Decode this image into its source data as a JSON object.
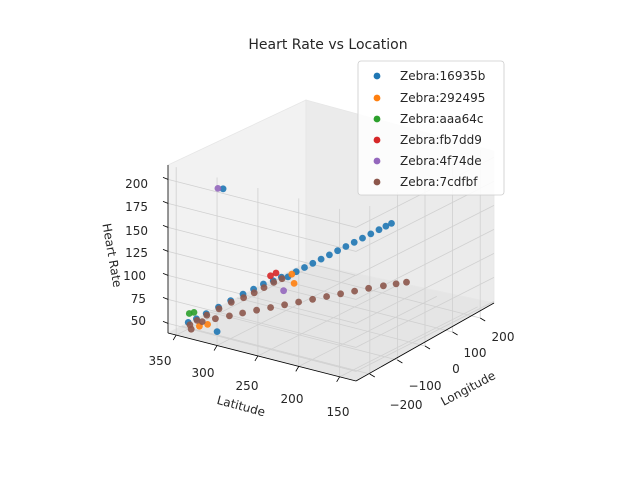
{
  "chart_data": {
    "type": "scatter",
    "projection": "3d",
    "title": "Heart Rate vs Location",
    "xlabel": "Longitude",
    "ylabel": "Latitude",
    "zlabel": "Heart Rate",
    "x_ticks": [
      "−200",
      "−100",
      "0",
      "100",
      "200"
    ],
    "y_ticks": [
      "150",
      "200",
      "250",
      "300",
      "350"
    ],
    "z_ticks": [
      "50",
      "75",
      "100",
      "125",
      "150",
      "175",
      "200"
    ],
    "xlim": [
      -250,
      250
    ],
    "ylim": [
      130,
      360
    ],
    "zlim": [
      40,
      215
    ],
    "grid": true,
    "legend": "top-right",
    "series": [
      {
        "name": "Zebra:16935b",
        "color": "#1f77b4",
        "points": [
          [
            -230,
            342,
            52
          ],
          [
            -230,
            332,
            58
          ],
          [
            -230,
            320,
            66
          ],
          [
            -230,
            305,
            76
          ],
          [
            -230,
            290,
            86
          ],
          [
            -230,
            275,
            96
          ],
          [
            -230,
            262,
            104
          ],
          [
            -230,
            250,
            112
          ],
          [
            -230,
            238,
            118
          ],
          [
            -230,
            228,
            124
          ],
          [
            -230,
            220,
            126
          ],
          [
            -200,
            220,
            127
          ],
          [
            -170,
            220,
            127
          ],
          [
            -140,
            220,
            127
          ],
          [
            -110,
            220,
            127
          ],
          [
            -80,
            220,
            127
          ],
          [
            -50,
            220,
            127
          ],
          [
            -20,
            220,
            127
          ],
          [
            10,
            220,
            127
          ],
          [
            40,
            220,
            127
          ],
          [
            70,
            220,
            127
          ],
          [
            100,
            220,
            127
          ],
          [
            125,
            220,
            127
          ],
          [
            145,
            220,
            127
          ],
          [
            -228,
            300,
            200
          ],
          [
            -220,
            310,
            48
          ]
        ]
      },
      {
        "name": "Zebra:292495",
        "color": "#ff7f0e",
        "points": [
          [
            -222,
            218,
            128
          ],
          [
            -190,
            226,
            112
          ],
          [
            -225,
            330,
            50
          ],
          [
            -225,
            320,
            54
          ]
        ]
      },
      {
        "name": "Zebra:aaa64c",
        "color": "#2ca02c",
        "points": [
          [
            -232,
            340,
            62
          ],
          [
            -230,
            335,
            64
          ]
        ]
      },
      {
        "name": "Zebra:fb7dd9",
        "color": "#d62728",
        "points": [
          [
            -226,
            236,
            126
          ],
          [
            -228,
            242,
            122
          ]
        ]
      },
      {
        "name": "Zebra:4f74de",
        "color": "#9467bd",
        "points": [
          [
            -232,
            305,
            200
          ],
          [
            -228,
            226,
            110
          ]
        ]
      },
      {
        "name": "Zebra:7cdfbf",
        "color": "#8c564b",
        "points": [
          [
            -228,
            228,
            122
          ],
          [
            -228,
            238,
            116
          ],
          [
            -228,
            250,
            108
          ],
          [
            -228,
            262,
            100
          ],
          [
            -228,
            275,
            92
          ],
          [
            -228,
            290,
            84
          ],
          [
            -228,
            305,
            74
          ],
          [
            -228,
            320,
            64
          ],
          [
            -228,
            332,
            56
          ],
          [
            -230,
            340,
            50
          ],
          [
            -231,
            338,
            46
          ],
          [
            -200,
            335,
            50
          ],
          [
            -170,
            329,
            50
          ],
          [
            -140,
            322,
            50
          ],
          [
            -110,
            316,
            50
          ],
          [
            -80,
            309,
            50
          ],
          [
            -50,
            302,
            50
          ],
          [
            -20,
            295,
            50
          ],
          [
            10,
            288,
            50
          ],
          [
            40,
            281,
            50
          ],
          [
            70,
            274,
            50
          ],
          [
            100,
            267,
            50
          ],
          [
            130,
            260,
            50
          ],
          [
            160,
            253,
            50
          ],
          [
            190,
            245,
            50
          ],
          [
            215,
            238,
            50
          ],
          [
            235,
            232,
            50
          ]
        ]
      }
    ]
  }
}
